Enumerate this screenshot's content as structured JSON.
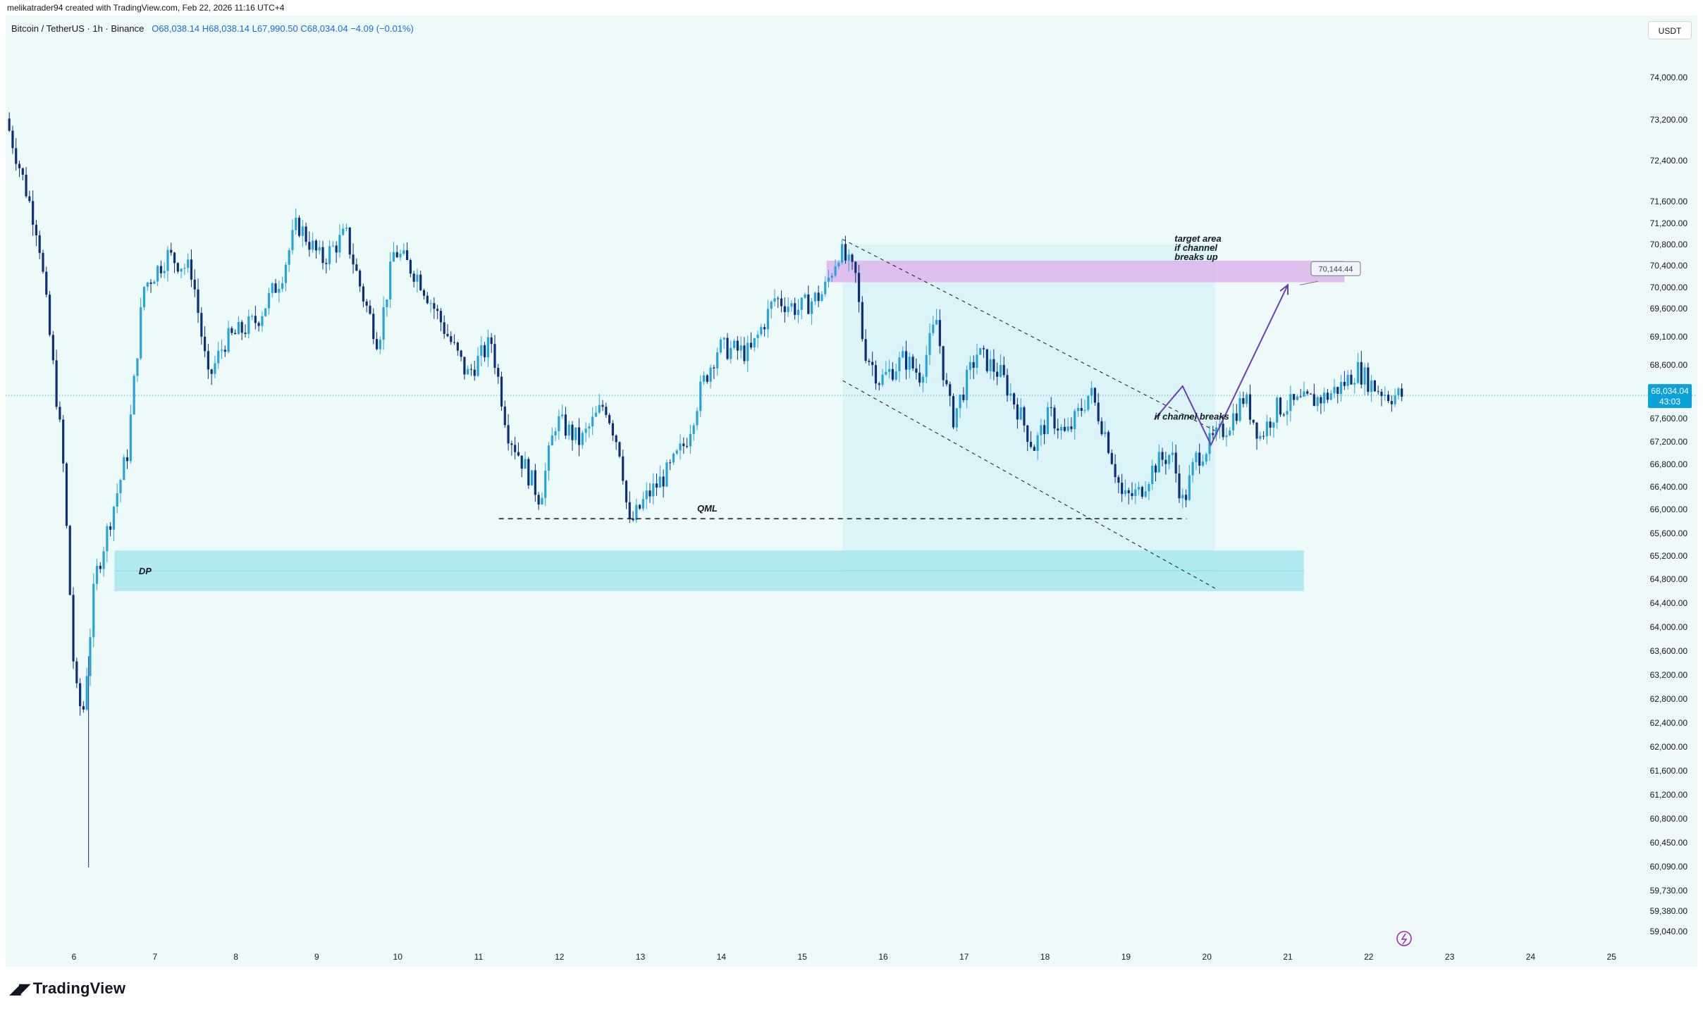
{
  "header": {
    "author_line": "melikatrader94 created with TradingView.com, Feb 22, 2026 11:16 UTC+4"
  },
  "legend": {
    "symbol": "Bitcoin / TetherUS · 1h · Binance",
    "open": "O68,038.14",
    "high": "H68,038.14",
    "low": "L67,990.50",
    "close": "C68,034.04",
    "change": "−4.09 (−0.01%)"
  },
  "unit_badge": "USDT",
  "branding": {
    "logo_text": "TradingView"
  },
  "price_badge": {
    "price": "68,034.04",
    "countdown": "43:03"
  },
  "colors": {
    "up": "#26a5dd",
    "down": "#0d2f7a",
    "background": "#eef9fa",
    "demand_zone": "#a8e6ee",
    "target_zone": "#dcb5ea",
    "channel_fill": "#d6f2f6",
    "arrow": "#6a3fb5",
    "current_price": "#0aa2d8"
  },
  "annotations": {
    "target_area": [
      "target area",
      "if channel",
      "breaks up"
    ],
    "if_channel_breaks": "if channel breaks",
    "qml": "QML",
    "dp": "DP",
    "target_price": "70,144.44"
  },
  "chart_data": {
    "type": "candlestick",
    "timeframe": "1h",
    "x_ticks": [
      "6",
      "7",
      "8",
      "9",
      "10",
      "11",
      "12",
      "13",
      "14",
      "15",
      "16",
      "17",
      "18",
      "19",
      "20",
      "21",
      "22",
      "23",
      "24",
      "25"
    ],
    "y_ticks": [
      "74,000.00",
      "73,200.00",
      "72,400.00",
      "71,600.00",
      "71,200.00",
      "70,800.00",
      "70,400.00",
      "70,000.00",
      "69,600.00",
      "69,100.00",
      "68,600.00",
      "67,600.00",
      "67,200.00",
      "66,800.00",
      "66,400.00",
      "66,000.00",
      "65,600.00",
      "65,200.00",
      "64,800.00",
      "64,400.00",
      "64,000.00",
      "63,600.00",
      "63,200.00",
      "62,800.00",
      "62,400.00",
      "62,000.00",
      "61,600.00",
      "61,200.00",
      "60,800.00",
      "60,450.00",
      "60,090.00",
      "59,730.00",
      "59,380.00",
      "59,040.00"
    ],
    "y_scale": "log",
    "current_price": 68034.04,
    "price_path": [
      {
        "day": 5.2,
        "price": 73200
      },
      {
        "day": 5.6,
        "price": 71000
      },
      {
        "day": 5.9,
        "price": 67000
      },
      {
        "day": 6.05,
        "price": 63000
      },
      {
        "day": 6.15,
        "price": 62500
      },
      {
        "day": 6.3,
        "price": 64800
      },
      {
        "day": 6.7,
        "price": 67000
      },
      {
        "day": 6.9,
        "price": 70000
      },
      {
        "day": 7.2,
        "price": 70600
      },
      {
        "day": 7.5,
        "price": 70300
      },
      {
        "day": 7.7,
        "price": 68300
      },
      {
        "day": 7.9,
        "price": 69000
      },
      {
        "day": 8.3,
        "price": 69400
      },
      {
        "day": 8.6,
        "price": 70200
      },
      {
        "day": 8.8,
        "price": 71200
      },
      {
        "day": 9.1,
        "price": 70500
      },
      {
        "day": 9.4,
        "price": 71000
      },
      {
        "day": 9.6,
        "price": 69900
      },
      {
        "day": 9.8,
        "price": 69000
      },
      {
        "day": 10.0,
        "price": 70700
      },
      {
        "day": 10.3,
        "price": 70200
      },
      {
        "day": 10.6,
        "price": 69300
      },
      {
        "day": 10.9,
        "price": 68400
      },
      {
        "day": 11.2,
        "price": 69000
      },
      {
        "day": 11.4,
        "price": 67400
      },
      {
        "day": 11.6,
        "price": 66800
      },
      {
        "day": 11.8,
        "price": 66200
      },
      {
        "day": 12.0,
        "price": 67600
      },
      {
        "day": 12.3,
        "price": 67200
      },
      {
        "day": 12.6,
        "price": 67900
      },
      {
        "day": 12.8,
        "price": 67000
      },
      {
        "day": 12.9,
        "price": 65700
      },
      {
        "day": 13.1,
        "price": 66200
      },
      {
        "day": 13.4,
        "price": 66700
      },
      {
        "day": 13.6,
        "price": 67200
      },
      {
        "day": 13.8,
        "price": 68200
      },
      {
        "day": 14.0,
        "price": 68900
      },
      {
        "day": 14.4,
        "price": 68800
      },
      {
        "day": 14.7,
        "price": 69800
      },
      {
        "day": 15.0,
        "price": 69600
      },
      {
        "day": 15.3,
        "price": 69900
      },
      {
        "day": 15.5,
        "price": 70700
      },
      {
        "day": 15.7,
        "price": 70200
      },
      {
        "day": 15.8,
        "price": 68900
      },
      {
        "day": 16.0,
        "price": 68300
      },
      {
        "day": 16.3,
        "price": 68700
      },
      {
        "day": 16.5,
        "price": 68400
      },
      {
        "day": 16.7,
        "price": 69400
      },
      {
        "day": 16.8,
        "price": 68300
      },
      {
        "day": 16.9,
        "price": 67600
      },
      {
        "day": 17.2,
        "price": 68800
      },
      {
        "day": 17.5,
        "price": 68400
      },
      {
        "day": 17.7,
        "price": 67800
      },
      {
        "day": 17.9,
        "price": 67100
      },
      {
        "day": 18.1,
        "price": 67700
      },
      {
        "day": 18.3,
        "price": 67300
      },
      {
        "day": 18.6,
        "price": 68100
      },
      {
        "day": 18.8,
        "price": 67300
      },
      {
        "day": 19.0,
        "price": 66200
      },
      {
        "day": 19.2,
        "price": 66300
      },
      {
        "day": 19.4,
        "price": 66800
      },
      {
        "day": 19.6,
        "price": 67000
      },
      {
        "day": 19.75,
        "price": 66100
      },
      {
        "day": 19.9,
        "price": 66900
      },
      {
        "day": 20.1,
        "price": 67200
      },
      {
        "day": 20.3,
        "price": 67500
      },
      {
        "day": 20.5,
        "price": 68000
      },
      {
        "day": 20.7,
        "price": 67300
      },
      {
        "day": 20.9,
        "price": 67800
      },
      {
        "day": 21.2,
        "price": 67900
      },
      {
        "day": 21.5,
        "price": 68000
      },
      {
        "day": 21.7,
        "price": 68200
      },
      {
        "day": 21.9,
        "price": 68500
      },
      {
        "day": 22.1,
        "price": 68200
      },
      {
        "day": 22.3,
        "price": 68030
      },
      {
        "day": 22.45,
        "price": 68034
      }
    ],
    "zones": {
      "demand_dp": {
        "day_from": 6.5,
        "day_to": 21.2,
        "price_from": 64600,
        "price_to": 65300
      },
      "target": {
        "day_from": 15.3,
        "day_to": 21.7,
        "price_from": 70100,
        "price_to": 70500
      },
      "channel_box": {
        "day_from": 15.5,
        "day_to": 20.1,
        "price_from": 64800,
        "price_to": 70800
      }
    },
    "qml_line": {
      "day_from": 11.25,
      "day_to": 19.75,
      "price": 65850
    },
    "channel_upper": [
      {
        "day": 15.5,
        "price": 70900
      },
      {
        "day": 20.1,
        "price": 67400
      }
    ],
    "channel_lower": [
      {
        "day": 15.5,
        "price": 68300
      },
      {
        "day": 20.1,
        "price": 64650
      }
    ],
    "projection": [
      {
        "day": 19.35,
        "price": 67600
      },
      {
        "day": 19.7,
        "price": 68200
      },
      {
        "day": 20.05,
        "price": 67150
      },
      {
        "day": 21.0,
        "price": 70050
      }
    ],
    "target_price": 70144.44
  }
}
